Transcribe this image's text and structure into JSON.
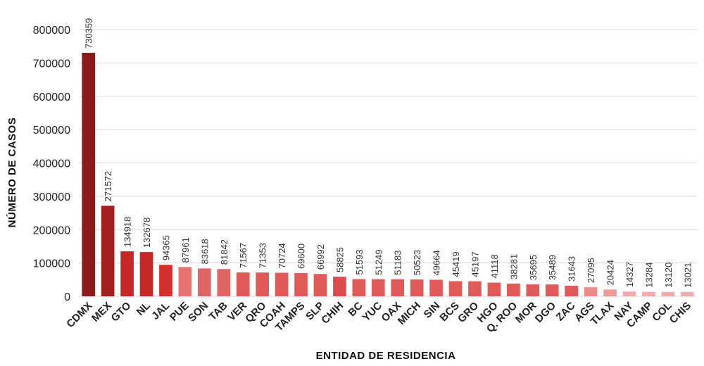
{
  "chart_data": {
    "type": "bar",
    "xlabel": "ENTIDAD DE RESIDENCIA",
    "ylabel": "NÚMERO DE CASOS",
    "ylim": [
      0,
      800000
    ],
    "yticks": [
      "0",
      "100000",
      "200000",
      "300000",
      "400000",
      "500000",
      "600000",
      "700000",
      "800000"
    ],
    "grid": true,
    "categories": [
      "CDMX",
      "MEX",
      "GTO",
      "NL",
      "JAL",
      "PUE",
      "SON",
      "TAB",
      "VER",
      "QRO",
      "COAH",
      "TAMPS",
      "SLP",
      "CHIH",
      "BC",
      "YUC",
      "OAX",
      "MICH",
      "SIN",
      "BCS",
      "GRO",
      "HGO",
      "Q. ROO",
      "MOR",
      "DGO",
      "ZAC",
      "AGS",
      "TLAX",
      "NAY",
      "CAMP",
      "COL",
      "CHIS"
    ],
    "values": [
      730359,
      271572,
      134918,
      132678,
      94365,
      87961,
      83618,
      81842,
      71567,
      71353,
      70724,
      69600,
      66992,
      58825,
      51593,
      51249,
      51183,
      50523,
      49664,
      45419,
      45197,
      41118,
      38281,
      35695,
      35489,
      31643,
      27095,
      20424,
      14327,
      13284,
      13120,
      13021
    ],
    "colors": [
      "#8b1a1a",
      "#a11f1f",
      "#c62828",
      "#c62828",
      "#d32f2f",
      "#e57373",
      "#e06666",
      "#e06666",
      "#e05a5a",
      "#e05a5a",
      "#e05a5a",
      "#e05a5a",
      "#e05a5a",
      "#d84c4c",
      "#e05a5a",
      "#e05a5a",
      "#e05a5a",
      "#e05a5a",
      "#e05a5a",
      "#e05a5a",
      "#e05a5a",
      "#e05a5a",
      "#e05a5a",
      "#e05a5a",
      "#e05a5a",
      "#e05a5a",
      "#ec8a8a",
      "#f09a9a",
      "#f2aaaa",
      "#f2aaaa",
      "#f2aaaa",
      "#f2aaaa"
    ]
  }
}
